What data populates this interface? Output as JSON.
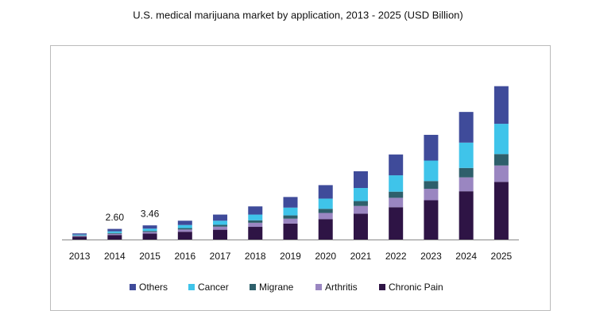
{
  "chart_data": {
    "type": "stacked_bar",
    "title": "U.S. medical marijuana market by application, 2013 - 2025 (USD Billion)",
    "categories": [
      "2013",
      "2014",
      "2015",
      "2016",
      "2017",
      "2018",
      "2019",
      "2020",
      "2021",
      "2022",
      "2023",
      "2024",
      "2025"
    ],
    "series": [
      {
        "name": "Others",
        "color": "#3f4b9a",
        "values": [
          0.3,
          0.6,
          0.8,
          1.05,
          1.5,
          2.0,
          2.6,
          3.3,
          4.1,
          5.1,
          6.3,
          7.5,
          9.2
        ]
      },
      {
        "name": "Cancer",
        "color": "#3fc4ea",
        "values": [
          0.2,
          0.4,
          0.56,
          0.75,
          1.0,
          1.4,
          1.9,
          2.5,
          3.2,
          4.0,
          5.0,
          6.2,
          7.4
        ]
      },
      {
        "name": "Migrane",
        "color": "#2e5f6b",
        "values": [
          0.1,
          0.2,
          0.25,
          0.35,
          0.45,
          0.6,
          0.8,
          1.0,
          1.2,
          1.5,
          1.9,
          2.3,
          2.8
        ]
      },
      {
        "name": "Arthritis",
        "color": "#9a86c1",
        "values": [
          0.2,
          0.3,
          0.4,
          0.55,
          0.75,
          1.0,
          1.2,
          1.5,
          1.9,
          2.3,
          2.8,
          3.4,
          4.0
        ]
      },
      {
        "name": "Chronic Pain",
        "color": "#2e1445",
        "values": [
          0.7,
          1.1,
          1.45,
          1.9,
          2.4,
          3.1,
          3.9,
          5.0,
          6.3,
          7.9,
          9.6,
          11.8,
          14.1
        ]
      }
    ],
    "annotations": [
      {
        "category": "2014",
        "value": 2.6,
        "label": "2.60"
      },
      {
        "category": "2015",
        "value": 3.46,
        "label": "3.46"
      }
    ],
    "ylim": [
      0,
      45
    ],
    "legend": "bottom"
  }
}
